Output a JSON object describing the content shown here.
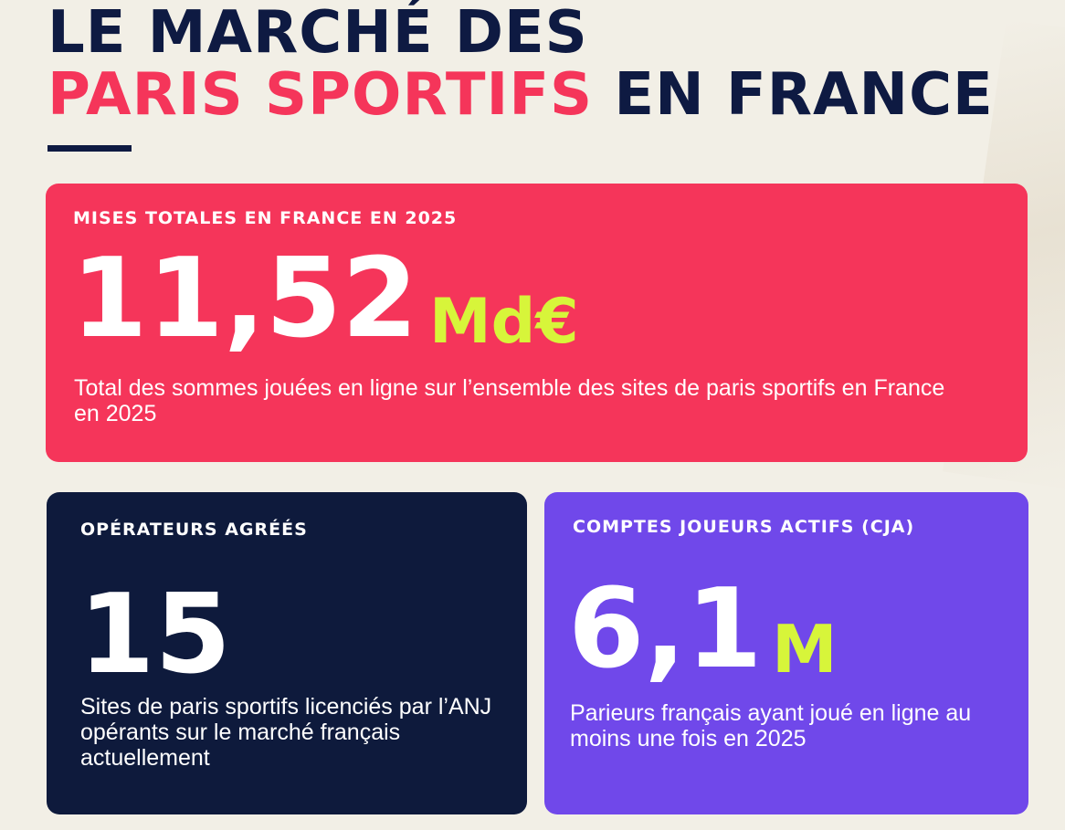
{
  "header": {
    "title_line1": "LE MARCHÉ DES",
    "title_line2_accent": "PARIS SPORTIFS",
    "title_line2_rest": " EN FRANCE"
  },
  "colors": {
    "background": "#f2efe6",
    "navy": "#0e1a42",
    "pink": "#f5355a",
    "purple": "#7048ea",
    "lime": "#d7f53a"
  },
  "cards": {
    "total_stakes": {
      "label": "MISES TOTALES EN FRANCE EN 2025",
      "value": "11,52",
      "unit": "Md€",
      "description": "Total des sommes jouées en ligne sur l’ensemble des sites de paris sportifs en France en 2025"
    },
    "operators": {
      "label": "OPÉRATEURS AGRÉÉS",
      "value": "15",
      "description": "Sites de paris sportifs licenciés par l’ANJ opérants sur le marché français actuellement"
    },
    "active_accounts": {
      "label": "COMPTES JOUEURS ACTIFS (CJA)",
      "value": "6,1",
      "unit": "M",
      "description": "Parieurs français ayant joué en ligne au moins une fois en 2025"
    }
  }
}
